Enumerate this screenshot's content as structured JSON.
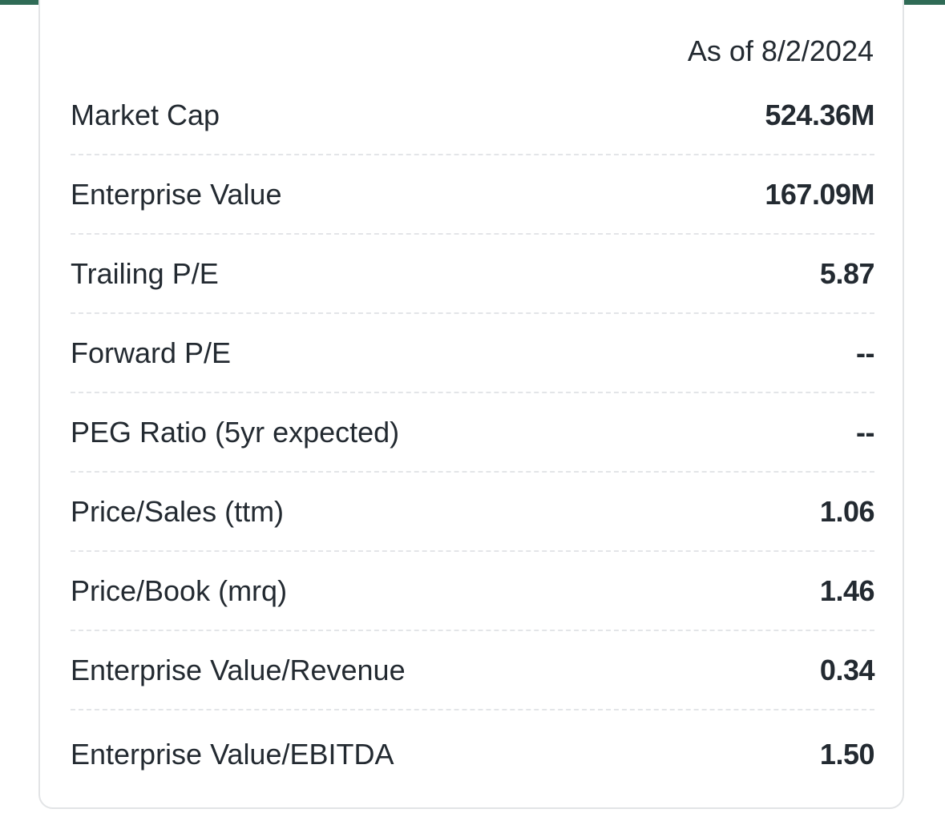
{
  "header": {
    "as_of": "As of 8/2/2024"
  },
  "table": {
    "rows": [
      [
        "Market Cap",
        "524.36M"
      ],
      [
        "Enterprise Value",
        "167.09M"
      ],
      [
        "Trailing P/E",
        "5.87"
      ],
      [
        "Forward P/E",
        "--"
      ],
      [
        "PEG Ratio (5yr expected)",
        "--"
      ],
      [
        "Price/Sales (ttm)",
        "1.06"
      ],
      [
        "Price/Book (mrq)",
        "1.46"
      ],
      [
        "Enterprise Value/Revenue",
        "0.34"
      ],
      [
        "Enterprise Value/EBITDA",
        "1.50"
      ]
    ]
  }
}
